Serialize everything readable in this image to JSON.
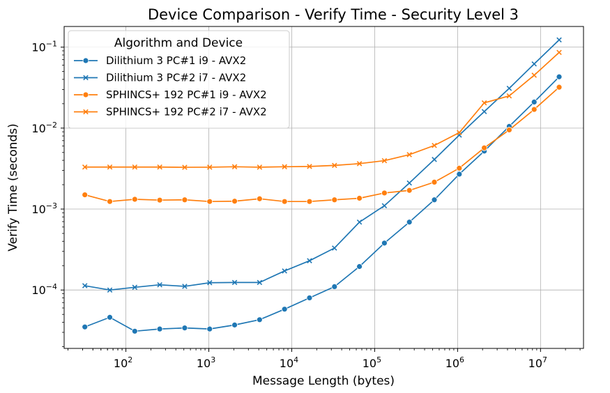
{
  "chart_data": {
    "type": "line",
    "title": "Device Comparison - Verify Time - Security Level 3",
    "xlabel": "Message Length (bytes)",
    "ylabel": "Verify Time (seconds)",
    "xscale": "log",
    "yscale": "log",
    "xlim": [
      18,
      33000000
    ],
    "ylim": [
      1.9e-05,
      0.18
    ],
    "grid": true,
    "x_ticks": [
      {
        "value": 100,
        "base": "10",
        "exp": "2"
      },
      {
        "value": 1000,
        "base": "10",
        "exp": "3"
      },
      {
        "value": 10000,
        "base": "10",
        "exp": "4"
      },
      {
        "value": 100000,
        "base": "10",
        "exp": "5"
      },
      {
        "value": 1000000,
        "base": "10",
        "exp": "6"
      },
      {
        "value": 10000000,
        "base": "10",
        "exp": "7"
      }
    ],
    "y_ticks": [
      {
        "value": 0.0001,
        "base": "10",
        "exp": "−4"
      },
      {
        "value": 0.001,
        "base": "10",
        "exp": "−3"
      },
      {
        "value": 0.01,
        "base": "10",
        "exp": "−2"
      },
      {
        "value": 0.1,
        "base": "10",
        "exp": "−1"
      }
    ],
    "legend": {
      "title": "Algorithm and Device",
      "placement": "upper-left"
    },
    "x": [
      32,
      64,
      128,
      256,
      512,
      1024,
      2048,
      4096,
      8192,
      16384,
      32768,
      65536,
      131072,
      262144,
      524288,
      1048576,
      2097152,
      4194304,
      8388608,
      16777216
    ],
    "series": [
      {
        "name": "Dilithium 3 PC#1 i9 - AVX2",
        "color": "#1f77b4",
        "marker": "circle",
        "values": [
          3.5e-05,
          4.6e-05,
          3.1e-05,
          3.3e-05,
          3.4e-05,
          3.3e-05,
          3.7e-05,
          4.3e-05,
          5.8e-05,
          8e-05,
          0.00011,
          0.000195,
          0.00038,
          0.00069,
          0.0013,
          0.0027,
          0.0052,
          0.0105,
          0.021,
          0.043
        ]
      },
      {
        "name": "Dilithium 3 PC#2 i7 - AVX2",
        "color": "#1f77b4",
        "marker": "x",
        "values": [
          0.000113,
          0.0001,
          0.000108,
          0.000116,
          0.000111,
          0.000123,
          0.000124,
          0.000124,
          0.000172,
          0.00023,
          0.00033,
          0.00069,
          0.0011,
          0.0021,
          0.0041,
          0.0082,
          0.016,
          0.031,
          0.062,
          0.123
        ]
      },
      {
        "name": "SPHINCS+ 192 PC#1 i9 - AVX2",
        "color": "#ff7f0e",
        "marker": "circle",
        "values": [
          0.0015,
          0.00124,
          0.00132,
          0.00129,
          0.0013,
          0.00124,
          0.00125,
          0.00134,
          0.00124,
          0.00124,
          0.0013,
          0.00136,
          0.00158,
          0.0017,
          0.00215,
          0.0032,
          0.0057,
          0.0095,
          0.017,
          0.032
        ]
      },
      {
        "name": "SPHINCS+ 192 PC#2 i7 - AVX2",
        "color": "#ff7f0e",
        "marker": "x",
        "values": [
          0.0033,
          0.0033,
          0.0033,
          0.0033,
          0.00328,
          0.00329,
          0.00333,
          0.00329,
          0.00333,
          0.00336,
          0.00346,
          0.00364,
          0.00396,
          0.0047,
          0.0061,
          0.0088,
          0.0205,
          0.025,
          0.045,
          0.086
        ]
      }
    ]
  }
}
